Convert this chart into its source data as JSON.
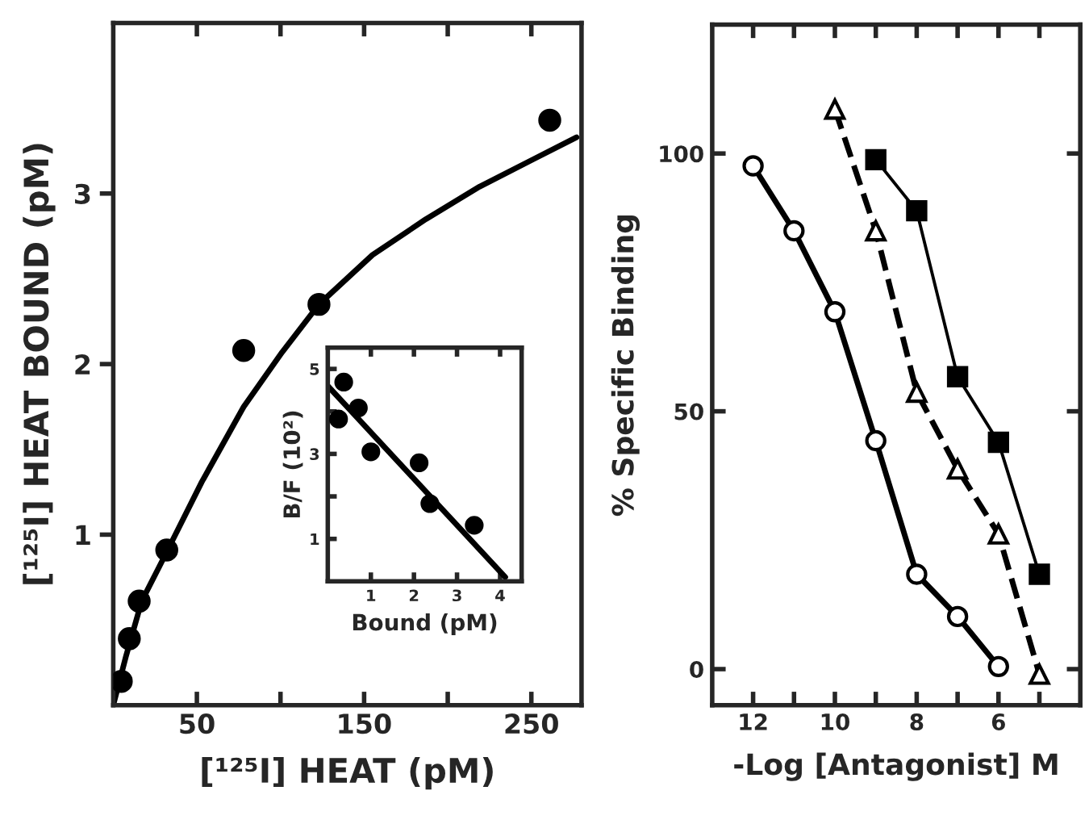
{
  "chart_data": [
    {
      "type": "scatter",
      "xlabel": "[¹²⁵I] HEAT (pM)",
      "ylabel": "[¹²⁵I] HEAT BOUND (pM)",
      "xlim": [
        0,
        280
      ],
      "ylim": [
        0,
        4
      ],
      "xticks": [
        {
          "value": 50,
          "label": "50"
        },
        {
          "value": 100,
          "label": null
        },
        {
          "value": 150,
          "label": "150"
        },
        {
          "value": 200,
          "label": null
        },
        {
          "value": 250,
          "label": "250"
        }
      ],
      "yticks": [
        1,
        2,
        3
      ],
      "grid": false,
      "legend": false,
      "series": [
        {
          "type": "scatter",
          "color": "#000000",
          "marker": "circle",
          "x": [
            4.8,
            9.6,
            15.5,
            32,
            78,
            123,
            261
          ],
          "values": [
            0.14,
            0.39,
            0.61,
            0.91,
            2.08,
            2.35,
            3.43
          ]
        },
        {
          "type": "line",
          "color": "#000000",
          "marker": "none",
          "line_style": "solid",
          "x": [
            0,
            7.7,
            17,
            30,
            53,
            78,
            101,
            123,
            155,
            187,
            219,
            251,
            277
          ],
          "values": [
            0,
            0.29,
            0.61,
            0.86,
            1.31,
            1.75,
            2.07,
            2.35,
            2.64,
            2.85,
            3.04,
            3.2,
            3.33
          ]
        }
      ]
    },
    {
      "type": "scatter",
      "xlabel": "Bound (pM)",
      "ylabel": "B/F (10²)",
      "xlim": [
        0,
        4.5
      ],
      "ylim": [
        0,
        5.5
      ],
      "xticks": [
        1,
        2,
        3,
        4
      ],
      "yticks": [
        1,
        {
          "value": 2,
          "label": null
        },
        3,
        {
          "value": 4,
          "label": null
        },
        5
      ],
      "grid": false,
      "legend": false,
      "series": [
        {
          "type": "scatter",
          "color": "#000000",
          "marker": "circle",
          "x": [
            0.25,
            0.37,
            0.71,
            1.0,
            2.12,
            2.37,
            3.4
          ],
          "values": [
            3.82,
            4.69,
            4.08,
            3.05,
            2.79,
            1.83,
            1.32
          ]
        },
        {
          "type": "line",
          "color": "#000000",
          "marker": "none",
          "line_style": "solid",
          "x": [
            0,
            4.12
          ],
          "values": [
            4.6,
            0.1
          ]
        }
      ]
    },
    {
      "type": "line",
      "xlabel": "-Log [Antagonist] M",
      "ylabel": "% Specific Binding",
      "xlim": [
        13,
        4
      ],
      "ylim": [
        -7,
        125
      ],
      "xticks": [
        12,
        {
          "value": 11,
          "label": null
        },
        10,
        {
          "value": 9,
          "label": null
        },
        8,
        {
          "value": 7,
          "label": null
        },
        6,
        {
          "value": 5,
          "label": null
        }
      ],
      "yticks": [
        0,
        50,
        100
      ],
      "grid": false,
      "legend": false,
      "series": [
        {
          "type": "line",
          "color": "#000000",
          "marker": "circle",
          "line_style": "solid",
          "x": [
            12,
            11,
            10,
            9,
            8,
            7,
            6
          ],
          "values": [
            97.6,
            85,
            69.3,
            44.3,
            18.4,
            10.2,
            0.5
          ]
        },
        {
          "type": "line",
          "color": "#000000",
          "marker": "triangle",
          "line_style": "dashed",
          "x": [
            10,
            9,
            8,
            7,
            6,
            5
          ],
          "values": [
            108.6,
            85,
            53.7,
            38.8,
            26.2,
            -1
          ]
        },
        {
          "type": "line",
          "color": "#000000",
          "marker": "square",
          "line_style": "solid",
          "x": [
            9,
            8,
            7,
            6,
            5
          ],
          "values": [
            98.8,
            88.9,
            56.7,
            44,
            18.4
          ]
        }
      ]
    }
  ]
}
